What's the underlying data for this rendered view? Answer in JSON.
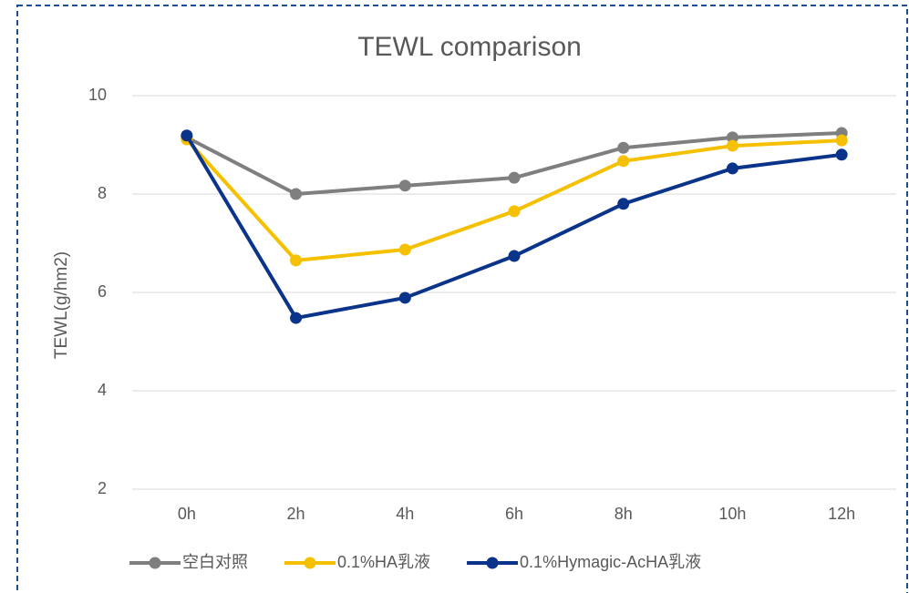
{
  "chart_data": {
    "type": "line",
    "title": "TEWL comparison",
    "y_label": "TEWL(g/hm2)",
    "categories": [
      "0h",
      "2h",
      "4h",
      "6h",
      "8h",
      "10h",
      "12h"
    ],
    "series": [
      {
        "name": "空白对照",
        "color": "#7f7f7f",
        "values": [
          9.15,
          8.0,
          8.17,
          8.33,
          8.94,
          9.15,
          9.24
        ]
      },
      {
        "name": "0.1%HA乳液",
        "color": "#f5c000",
        "values": [
          9.11,
          6.65,
          6.87,
          7.65,
          8.67,
          8.98,
          9.09
        ]
      },
      {
        "name": "0.1%Hymagic-AcHA乳液",
        "color": "#0a338a",
        "values": [
          9.19,
          5.48,
          5.89,
          6.74,
          7.8,
          8.52,
          8.8
        ]
      }
    ],
    "ylim": [
      2,
      10
    ],
    "yticks": [
      2,
      4,
      6,
      8,
      10
    ],
    "grid": true,
    "legend": "bottom"
  }
}
